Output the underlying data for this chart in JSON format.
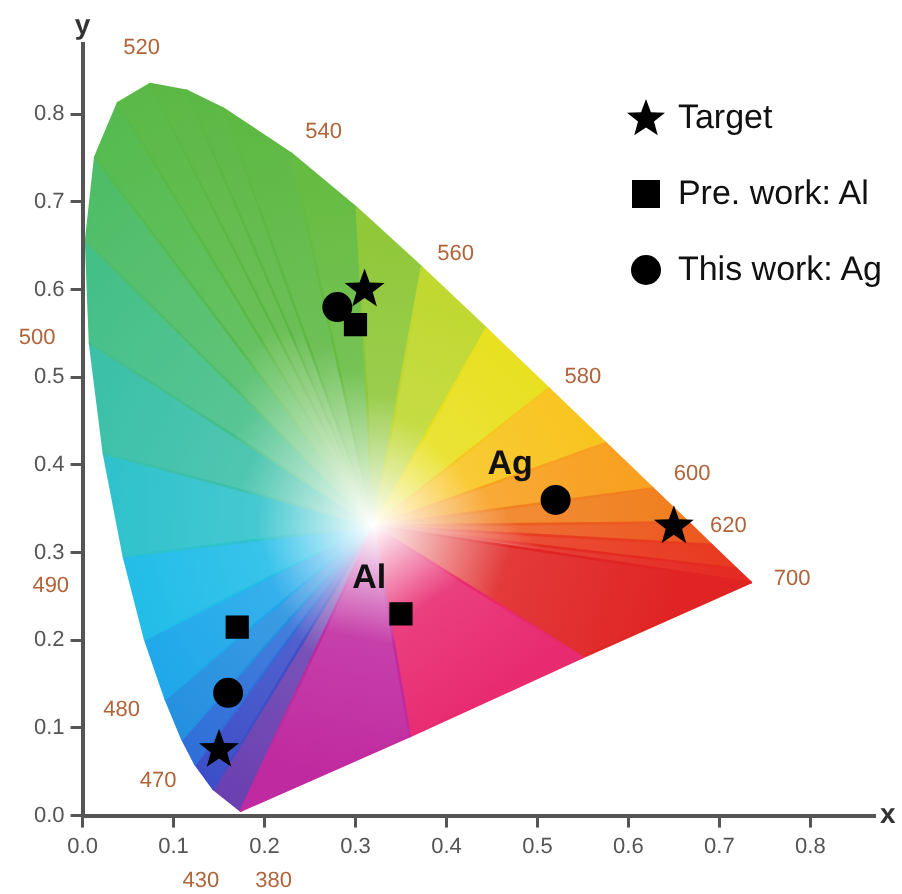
{
  "chart_data": {
    "type": "scatter",
    "xlabel": "x",
    "ylabel": "y",
    "xlim": [
      0,
      0.87
    ],
    "ylim": [
      0,
      0.88
    ],
    "xticks": [
      {
        "value": 0,
        "label": "0.0"
      },
      0.1,
      0.2,
      0.3,
      0.4,
      0.5,
      0.6,
      0.7,
      0.8
    ],
    "yticks": [
      {
        "value": 0,
        "label": "0.0"
      },
      0.1,
      0.2,
      0.3,
      0.4,
      0.5,
      0.6,
      0.7,
      0.8
    ],
    "grid": false,
    "legend": "top right",
    "series": [
      {
        "name": "Target",
        "color": "#000000",
        "marker": "star",
        "x": [
          0.31,
          0.15,
          0.65
        ],
        "values": [
          0.6,
          0.075,
          0.33
        ]
      },
      {
        "name": "Pre. work: Al",
        "color": "#000000",
        "marker": "square",
        "x": [
          0.3,
          0.17,
          0.35
        ],
        "values": [
          0.56,
          0.215,
          0.23
        ]
      },
      {
        "name": "This work: Ag",
        "color": "#000000",
        "marker": "circle",
        "x": [
          0.28,
          0.16,
          0.52
        ],
        "values": [
          0.58,
          0.14,
          0.36
        ]
      }
    ],
    "annotations": [
      "Ag",
      "Al",
      "520",
      "540",
      "560",
      "580",
      "600",
      "620",
      "700",
      "500",
      "490",
      "480",
      "470",
      "430",
      "380"
    ]
  }
}
